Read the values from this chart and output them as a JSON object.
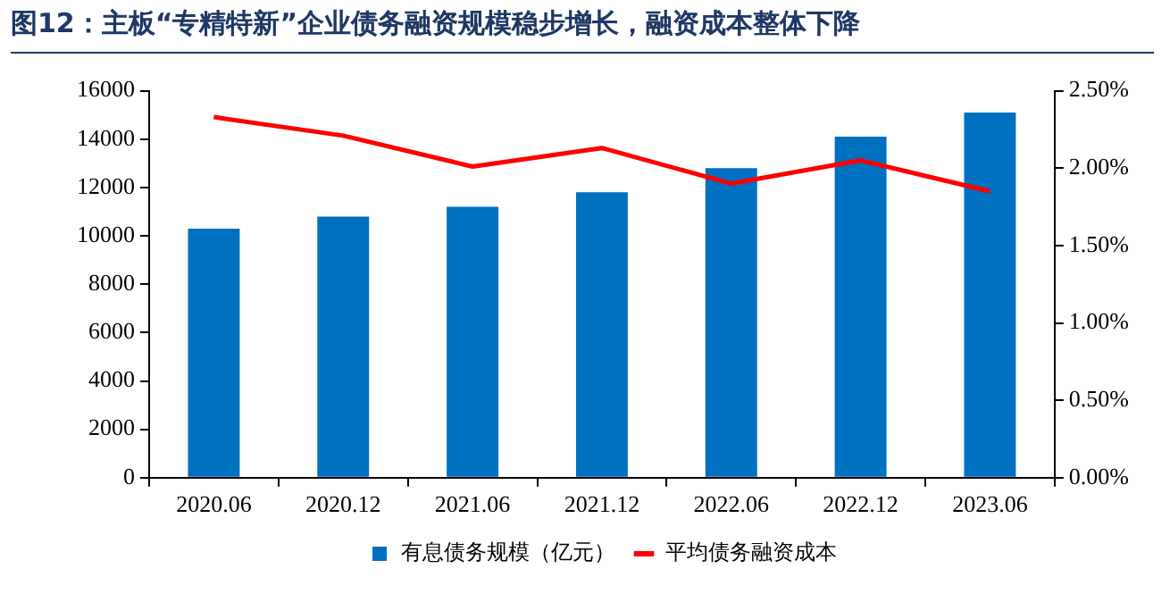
{
  "chart_data": {
    "type": "bar",
    "title": "图12：主板“专精特新”企业债务融资规模稳步增长，融资成本整体下降",
    "categories": [
      "2020.06",
      "2020.12",
      "2021.06",
      "2021.12",
      "2022.06",
      "2022.12",
      "2023.06"
    ],
    "series": [
      {
        "name": "有息债务规模（亿元）",
        "color": "#0070c0",
        "values": [
          10300,
          10800,
          11200,
          11800,
          12800,
          14100,
          15100
        ]
      },
      {
        "name": "平均债务融资成本",
        "type": "line",
        "axis": "y2",
        "color": "#ff0000",
        "marker": "none",
        "values": [
          2.33,
          2.21,
          2.01,
          2.13,
          1.9,
          2.05,
          1.85
        ]
      }
    ],
    "ylim": [
      0,
      16000
    ],
    "yticks": [
      0,
      2000,
      4000,
      6000,
      8000,
      10000,
      12000,
      14000,
      16000
    ],
    "y2lim": [
      0,
      2.5
    ],
    "y2ticks": [
      {
        "value": 0,
        "label": "0.00%"
      },
      {
        "value": 0.5,
        "label": "0.50%"
      },
      {
        "value": 1,
        "label": "1.00%"
      },
      {
        "value": 1.5,
        "label": "1.50%"
      },
      {
        "value": 2,
        "label": "2.00%"
      },
      {
        "value": 2.5,
        "label": "2.50%"
      }
    ],
    "grid": false,
    "legend": "bottom"
  }
}
